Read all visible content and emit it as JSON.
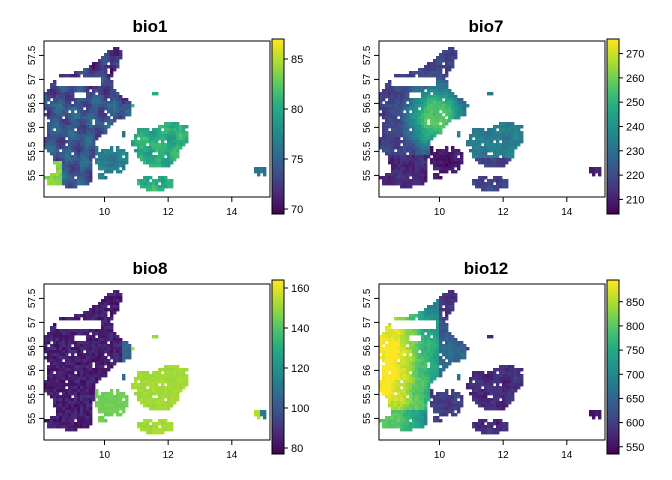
{
  "chart_data": [
    {
      "type": "heatmap",
      "title": "bio1",
      "xlabel": "",
      "ylabel": "",
      "xlim": [
        8.1,
        15.2
      ],
      "ylim": [
        54.55,
        57.8
      ],
      "x_ticks": [
        "10",
        "12",
        "14"
      ],
      "y_ticks": [
        "55",
        "55.5",
        "56",
        "56.5",
        "57",
        "57.5"
      ],
      "colorbar": {
        "min": 69.5,
        "max": 87,
        "ticks": [
          "70",
          "75",
          "80",
          "85"
        ]
      },
      "pattern": "bio1",
      "grid": false
    },
    {
      "type": "heatmap",
      "title": "bio7",
      "xlabel": "",
      "ylabel": "",
      "xlim": [
        8.1,
        15.2
      ],
      "ylim": [
        54.55,
        57.8
      ],
      "x_ticks": [
        "10",
        "12",
        "14"
      ],
      "y_ticks": [
        "55",
        "55.5",
        "56",
        "56.5",
        "57",
        "57.5"
      ],
      "colorbar": {
        "min": 204,
        "max": 276,
        "ticks": [
          "210",
          "220",
          "230",
          "240",
          "250",
          "260",
          "270"
        ]
      },
      "pattern": "bio7",
      "grid": false
    },
    {
      "type": "heatmap",
      "title": "bio8",
      "xlabel": "",
      "ylabel": "",
      "xlim": [
        8.1,
        15.2
      ],
      "ylim": [
        54.55,
        57.8
      ],
      "x_ticks": [
        "10",
        "12",
        "14"
      ],
      "y_ticks": [
        "55",
        "55.5",
        "56",
        "56.5",
        "57",
        "57.5"
      ],
      "colorbar": {
        "min": 77,
        "max": 164,
        "ticks": [
          "80",
          "100",
          "120",
          "140",
          "160"
        ]
      },
      "pattern": "bio8",
      "grid": false
    },
    {
      "type": "heatmap",
      "title": "bio12",
      "xlabel": "",
      "ylabel": "",
      "xlim": [
        8.1,
        15.2
      ],
      "ylim": [
        54.55,
        57.8
      ],
      "x_ticks": [
        "10",
        "12",
        "14"
      ],
      "y_ticks": [
        "55",
        "55.5",
        "56",
        "56.5",
        "57",
        "57.5"
      ],
      "colorbar": {
        "min": 535,
        "max": 895,
        "ticks": [
          "550",
          "600",
          "650",
          "700",
          "750",
          "800",
          "850"
        ]
      },
      "pattern": "bio12",
      "grid": false
    }
  ],
  "palette": [
    "#440154",
    "#472d7b",
    "#3b528b",
    "#2c728e",
    "#21918c",
    "#28ae80",
    "#5ec962",
    "#addc30",
    "#fde725"
  ]
}
